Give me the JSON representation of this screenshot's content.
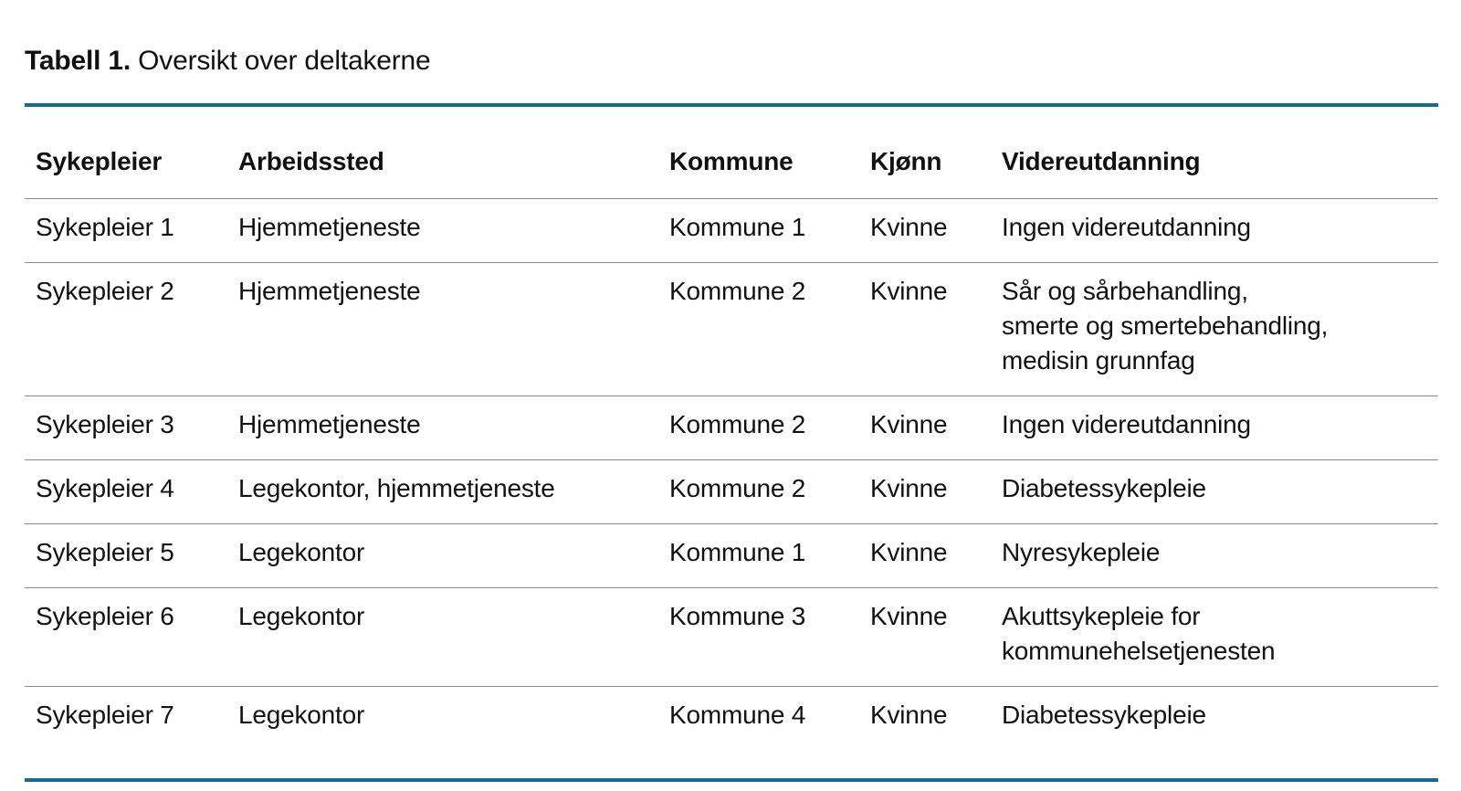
{
  "caption": {
    "label": "Tabell 1.",
    "text": "Oversikt over deltakerne"
  },
  "table": {
    "columns": [
      "Sykepleier",
      "Arbeidssted",
      "Kommune",
      "Kjønn",
      "Videreutdanning"
    ],
    "rows": [
      [
        "Sykepleier 1",
        "Hjemmetjeneste",
        "Kommune 1",
        "Kvinne",
        "Ingen videreutdanning"
      ],
      [
        "Sykepleier 2",
        "Hjemmetjeneste",
        "Kommune 2",
        "Kvinne",
        "Sår og sårbehandling,\nsmerte og smertebehandling,\nmedisin grunnfag"
      ],
      [
        "Sykepleier 3",
        "Hjemmetjeneste",
        "Kommune 2",
        "Kvinne",
        "Ingen videreutdanning"
      ],
      [
        "Sykepleier 4",
        "Legekontor, hjemmetjeneste",
        "Kommune 2",
        "Kvinne",
        "Diabetessykepleie"
      ],
      [
        "Sykepleier 5",
        "Legekontor",
        "Kommune 1",
        "Kvinne",
        "Nyresykepleie"
      ],
      [
        "Sykepleier 6",
        "Legekontor",
        "Kommune 3",
        "Kvinne",
        "Akuttsykepleie for\nkommunehelsetjenesten"
      ],
      [
        "Sykepleier 7",
        "Legekontor",
        "Kommune 4",
        "Kvinne",
        "Diabetessykepleie"
      ]
    ]
  },
  "colors": {
    "accent_rule": "#186a8f",
    "row_divider": "#8a8a8a",
    "text": "#111111",
    "background": "#ffffff"
  }
}
